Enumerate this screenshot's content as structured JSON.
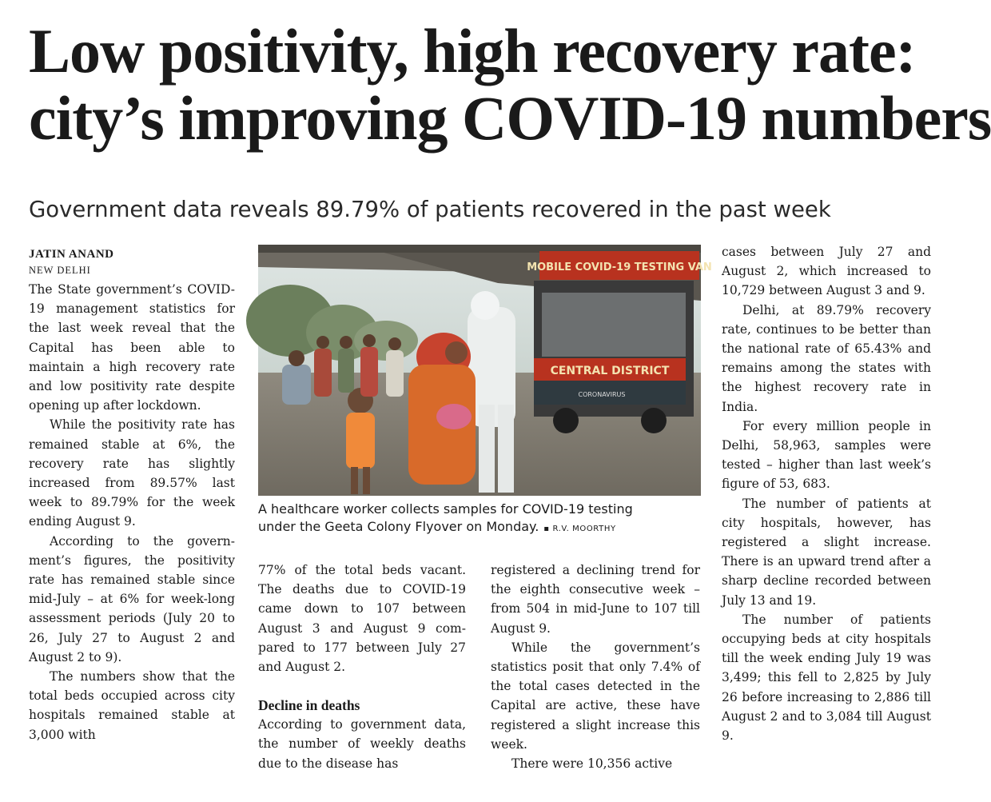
{
  "headline": {
    "line1": "Low positivity, high recovery rate:",
    "line2": "city’s improving COVID-19 numbers"
  },
  "deck": "Government data reveals 89.79% of patients recovered in the past week",
  "byline": {
    "author": "JATIN ANAND",
    "dateline": "NEW DELHI"
  },
  "photo": {
    "van_sign_top": "MOBILE COVID-19 TESTING VAN",
    "van_sign_bottom": "CENTRAL DISTRICT",
    "van_decal": "CORONAVIRUS",
    "caption_line1": "A healthcare worker collects samples for COVID-19 testing",
    "caption_line2": "under the Geeta Colony Flyover on Monday.",
    "credit": "R.V. MOORTHY"
  },
  "column1": {
    "p1": "The State government’s CO­VID-19 management statis­tics for the last week reveal that the Capital has been able to maintain a high re­covery rate and low positivi­ty rate despite opening up af­ter lockdown.",
    "p2": "While the positivity rate has remained stable at 6%, the recovery rate has slightly increased from 89.57% last week to 89.79% for the week ending August 9.",
    "p3": "According to the govern­ment’s figures, the positivity rate has remained stable since mid-July – at 6% for week-long assessment pe­riods (July 20 to 26, July 27 to August 2 and August 2 to 9).",
    "p4": "The numbers show that the total beds occupied across city hospitals re­mained stable at 3,000 with"
  },
  "column2": {
    "p1": "77% of the total beds vacant. The deaths due to COVID-19 came down to 107 between August 3 and August 9 com­pared to 177 between July 27 and August 2.",
    "subhead": "Decline in deaths",
    "p2": "According to government da­ta, the number of weekly deaths due to the disease has"
  },
  "column3": {
    "p1": "registered a declining trend for the eighth consecutive week – from 504 in mid-June to 107 till August 9.",
    "p2": "While the government’s statistics posit that only 7.4% of the total cases detected in the Capital are active, these have registered a slight in­crease this week.",
    "p3": "There were 10,356 active"
  },
  "column4": {
    "p1": "cases between July 27 and August 2, which increased to 10,729 between August 3 and 9.",
    "p2": "Delhi, at 89.79% recovery rate, continues to be better than the national rate of 65.43% and remains among the states with the highest recovery rate in India.",
    "p3": "For every million people in Delhi, 58,963, samples were tested – higher than last week’s figure of 53, 683.",
    "p4": "The number of patients at city hospitals, however, has registered a slight increase. There is an upward trend af­ter a sharp decline recorded between July 13 and 19.",
    "p5": "The number of patients occupying beds at city hospi­tals till the week ending July 19 was 3,499; this fell to 2,825 by July 26 before in­creasing to 2,886 till August 2 and to 3,084 till August 9."
  }
}
